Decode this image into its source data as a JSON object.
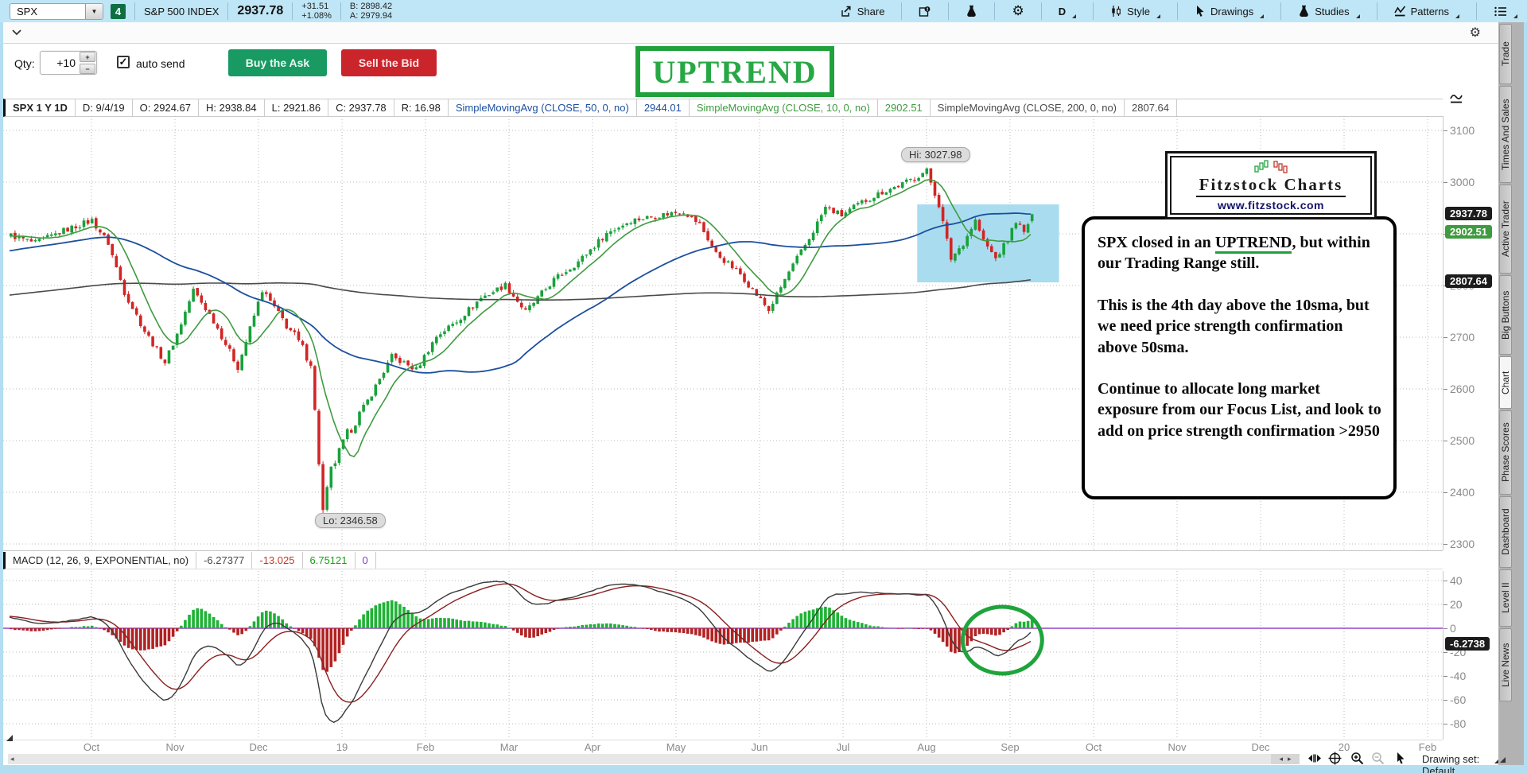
{
  "toolbar": {
    "symbol": "SPX",
    "watchlist_badge": "4",
    "symbol_name": "S&P 500 INDEX",
    "last": "2937.78",
    "change": "+31.51",
    "change_pct": "+1.08%",
    "bid": "B: 2898.42",
    "ask": "A: 2979.94",
    "share": "Share",
    "timeframe": "D",
    "style": "Style",
    "drawings": "Drawings",
    "studies": "Studies",
    "patterns": "Patterns"
  },
  "order_bar": {
    "qty_label": "Qty:",
    "qty_value": "+10",
    "auto_send_label": "auto send",
    "buy_label": "Buy the Ask",
    "sell_label": "Sell the Bid"
  },
  "banner": {
    "text": "UPTREND",
    "color": "#21a13c"
  },
  "chart_header": {
    "title": "SPX 1 Y 1D",
    "date": "D: 9/4/19",
    "open": "O: 2924.67",
    "high": "H: 2938.84",
    "low": "L: 2921.86",
    "close": "C: 2937.78",
    "range": "R: 16.98"
  },
  "logo": {
    "title": "Fitzstock Charts",
    "url": "www.fitzstock.com"
  },
  "note": {
    "p1_before": "SPX closed in an ",
    "p1_underlined": "UPTREND",
    "p1_after": ", but within our Trading Range still.",
    "p2": "This is the 4th day above the 10sma, but we need price strength confirmation above 50sma.",
    "p3": "Continue to allocate long market exposure from our Focus List, and look to add on price strength confirmation >2950"
  },
  "macd_header": {
    "label": "MACD (12, 26, 9, EXPONENTIAL, no)",
    "value": "-6.27377",
    "avg": "-13.025",
    "diff": "6.75121",
    "zero": "0",
    "value_color": "#4a4a4a",
    "avg_color": "#c0392b",
    "diff_color": "#17a017",
    "zero_color": "#8040c0"
  },
  "bottom_bar": {
    "drawing_set": "Drawing set: Default"
  },
  "sidebar": {
    "active": "Chart",
    "tabs": [
      {
        "label": "Trade"
      },
      {
        "label": "Times And Sales"
      },
      {
        "label": "Active Trader"
      },
      {
        "label": "Big Buttons"
      },
      {
        "label": "Chart"
      },
      {
        "label": "Phase Scores"
      },
      {
        "label": "Dashboard"
      },
      {
        "label": "Level II"
      },
      {
        "label": "Live News"
      }
    ]
  },
  "chart_data": {
    "type": "candlestick",
    "title": "SPX 1 Y 1D",
    "ohlc_summary": {
      "date": "9/4/19",
      "open": 2924.67,
      "high": 2938.84,
      "low": 2921.86,
      "close": 2937.78,
      "range": 16.98
    },
    "studies": [
      {
        "label": "SimpleMovingAvg (CLOSE, 50, 0, no)",
        "value": "2944.01",
        "color": "#1b4f9e",
        "period": 50
      },
      {
        "label": "SimpleMovingAvg (CLOSE, 10, 0, no)",
        "value": "2902.51",
        "color": "#3f9b3f",
        "period": 10
      },
      {
        "label": "SimpleMovingAvg (CLOSE, 200, 0, no)",
        "value": "2807.64",
        "color": "#4a4a4a",
        "period": 200
      }
    ],
    "price_axis": {
      "ticks": [
        3100,
        3000,
        2900,
        2800,
        2700,
        2600,
        2500,
        2400,
        2300
      ],
      "bubbles": [
        {
          "value": "2937.78",
          "bg": "#1c1c1c",
          "price": 2937.78
        },
        {
          "value": "2902.51",
          "bg": "#3f9b3f",
          "price": 2902.51
        },
        {
          "value": "2807.64",
          "bg": "#1c1c1c",
          "price": 2807.64
        }
      ]
    },
    "macd": {
      "label": "MACD (12, 26, 9, EXPONENTIAL, no)",
      "value": -6.27377,
      "avg": -13.025,
      "diff": 6.75121,
      "zero": 0,
      "axis_ticks": [
        40,
        20,
        0,
        -20,
        -40,
        -60,
        -80
      ],
      "bubble": "-6.2738",
      "hist_up_color": "#1fb235",
      "hist_down_color": "#b22222",
      "value_line_color": "#3a3a3a",
      "avg_line_color": "#8b1e1e",
      "zero_line_color": "#9a42c8"
    },
    "x_axis_labels": [
      "Oct",
      "Nov",
      "Dec",
      "19",
      "Feb",
      "Mar",
      "Apr",
      "May",
      "Jun",
      "Jul",
      "Aug",
      "Sep",
      "Oct",
      "Nov",
      "Dec",
      "20",
      "Feb"
    ],
    "annotations": {
      "high_label": "Hi: 3027.98",
      "high_day": 226,
      "high_price": 3027.98,
      "low_label": "Lo: 2346.58",
      "low_day": 77,
      "low_price": 2346.58,
      "highlight_rect": {
        "day_from": 224,
        "day_to": 259,
        "price_top": 2957,
        "price_bottom": 2806,
        "color": "#a9dcef"
      },
      "macd_circle": {
        "day": 245,
        "value": -10,
        "color": "#1fa43c"
      }
    },
    "colors": {
      "up": "#19a13b",
      "down": "#d32424"
    },
    "days": 253,
    "prehistory_days": 210,
    "waypoints": [
      [
        -210,
        2695
      ],
      [
        -180,
        2742
      ],
      [
        -150,
        2705
      ],
      [
        -120,
        2748
      ],
      [
        -90,
        2782
      ],
      [
        -60,
        2802
      ],
      [
        -30,
        2862
      ],
      [
        -10,
        2892
      ],
      [
        0,
        2897
      ],
      [
        6,
        2882
      ],
      [
        13,
        2906
      ],
      [
        20,
        2926
      ],
      [
        24,
        2882
      ],
      [
        28,
        2787
      ],
      [
        33,
        2712
      ],
      [
        38,
        2652
      ],
      [
        41,
        2706
      ],
      [
        45,
        2791
      ],
      [
        50,
        2732
      ],
      [
        56,
        2642
      ],
      [
        62,
        2791
      ],
      [
        66,
        2746
      ],
      [
        70,
        2702
      ],
      [
        74,
        2652
      ],
      [
        77,
        2362
      ],
      [
        79,
        2442
      ],
      [
        83,
        2512
      ],
      [
        88,
        2577
      ],
      [
        94,
        2662
      ],
      [
        100,
        2637
      ],
      [
        105,
        2702
      ],
      [
        110,
        2731
      ],
      [
        116,
        2776
      ],
      [
        122,
        2801
      ],
      [
        127,
        2749
      ],
      [
        134,
        2811
      ],
      [
        140,
        2846
      ],
      [
        147,
        2901
      ],
      [
        153,
        2926
      ],
      [
        160,
        2936
      ],
      [
        166,
        2944
      ],
      [
        170,
        2918
      ],
      [
        174,
        2862
      ],
      [
        180,
        2822
      ],
      [
        187,
        2752
      ],
      [
        192,
        2826
      ],
      [
        197,
        2891
      ],
      [
        201,
        2951
      ],
      [
        205,
        2936
      ],
      [
        210,
        2961
      ],
      [
        215,
        2981
      ],
      [
        220,
        2996
      ],
      [
        226,
        3022
      ],
      [
        229,
        2956
      ],
      [
        232,
        2852
      ],
      [
        235,
        2882
      ],
      [
        238,
        2926
      ],
      [
        240,
        2886
      ],
      [
        243,
        2852
      ],
      [
        246,
        2889
      ],
      [
        248,
        2926
      ],
      [
        250,
        2901
      ],
      [
        252,
        2937.78
      ]
    ]
  }
}
